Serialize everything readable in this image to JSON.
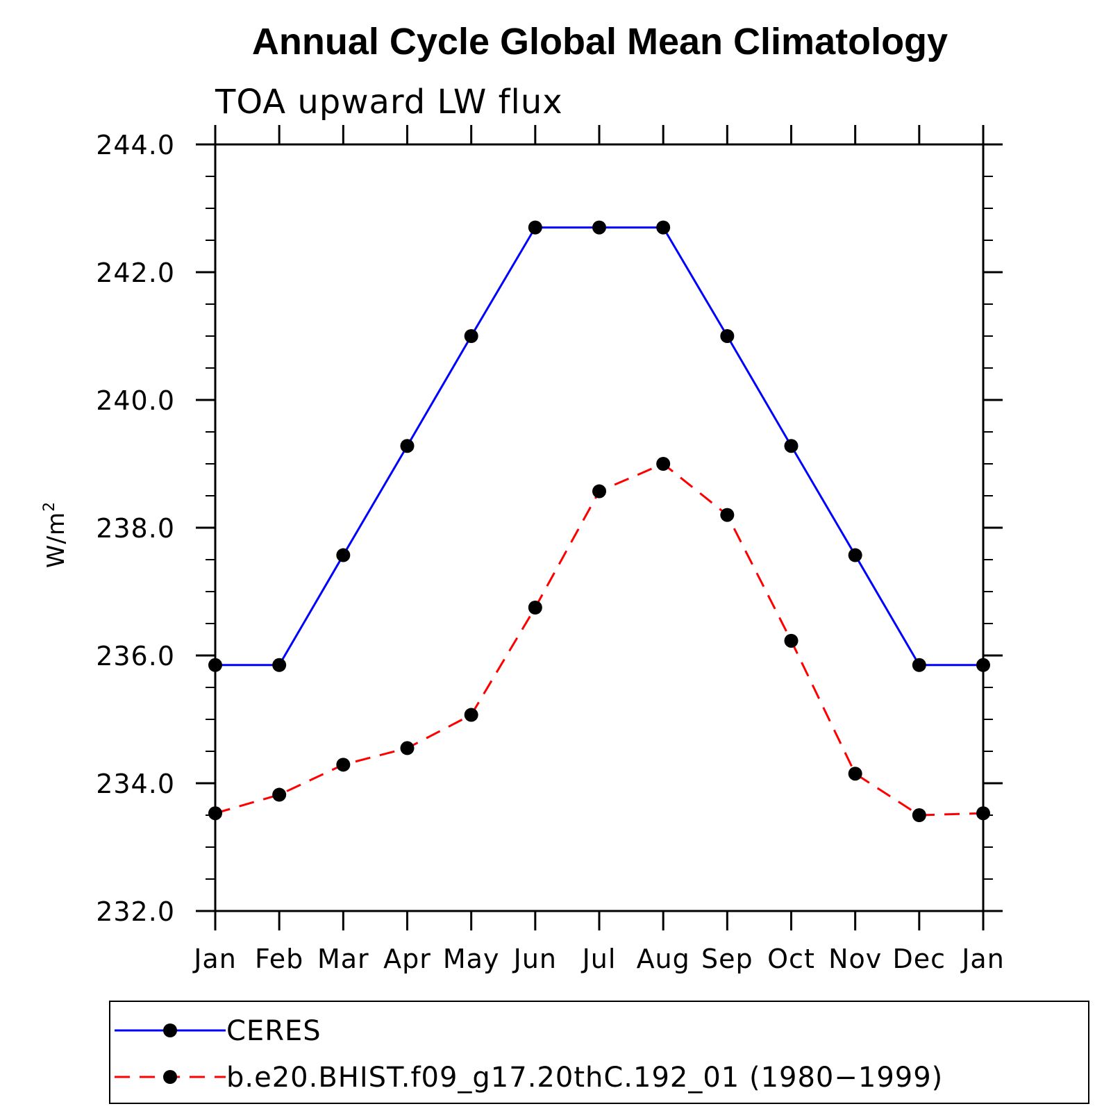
{
  "chart_data": {
    "type": "line",
    "title": "Annual Cycle Global Mean Climatology",
    "subtitle": "TOA upward LW flux",
    "ylabel": "W/m",
    "ylabel_superscript": "2",
    "xlabel": "",
    "categories": [
      "Jan",
      "Feb",
      "Mar",
      "Apr",
      "May",
      "Jun",
      "Jul",
      "Aug",
      "Sep",
      "Oct",
      "Nov",
      "Dec",
      "Jan"
    ],
    "ylim": [
      232.0,
      244.0
    ],
    "yticks": [
      "232.0",
      "234.0",
      "236.0",
      "238.0",
      "240.0",
      "242.0",
      "244.0"
    ],
    "grid": false,
    "legend_position": "bottom",
    "series": [
      {
        "name": "CERES",
        "color": "#0000ff",
        "line_style": "solid",
        "marker": "filled-circle",
        "values": [
          235.85,
          235.85,
          237.57,
          239.28,
          241.0,
          242.7,
          242.7,
          242.7,
          241.0,
          239.28,
          237.57,
          235.85,
          235.85
        ]
      },
      {
        "name": "b.e20.BHIST.f09_g17.20thC.192_01 (1980−1999)",
        "color": "#ff0000",
        "line_style": "dashed",
        "marker": "filled-circle",
        "values": [
          233.53,
          233.82,
          234.29,
          234.55,
          235.07,
          236.75,
          238.57,
          239.0,
          238.2,
          236.23,
          234.15,
          233.5,
          233.53
        ]
      }
    ]
  }
}
